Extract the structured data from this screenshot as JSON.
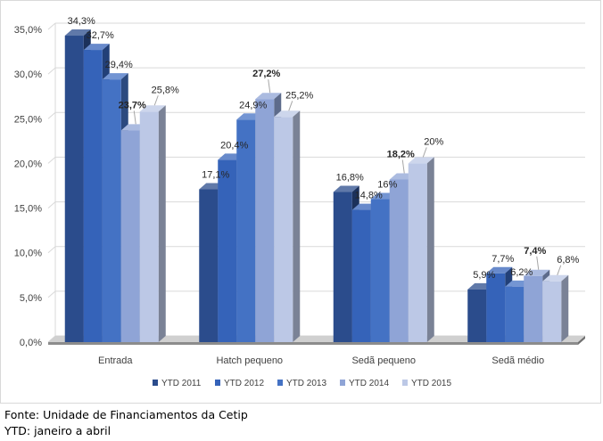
{
  "chart_data": {
    "type": "bar",
    "title": "",
    "xlabel": "",
    "ylabel": "",
    "categories": [
      "Entrada",
      "Hatch pequeno",
      "Sedã pequeno",
      "Sedã médio"
    ],
    "series": [
      {
        "name": "YTD 2011",
        "values": [
          34.3,
          17.1,
          16.8,
          5.9
        ],
        "labels": [
          "34,3%",
          "17,1%",
          "16,8%",
          "5,9%"
        ],
        "color": "#2b4c8c"
      },
      {
        "name": "YTD 2012",
        "values": [
          32.7,
          20.4,
          14.8,
          7.7
        ],
        "labels": [
          "32,7%",
          "20,4%",
          "14,8%",
          "7,7%"
        ],
        "color": "#3563b9"
      },
      {
        "name": "YTD 2013",
        "values": [
          29.4,
          24.9,
          16.0,
          6.2
        ],
        "labels": [
          "29,4%",
          "24,9%",
          "16%",
          "6,2%"
        ],
        "color": "#4472c4"
      },
      {
        "name": "YTD 2014",
        "values": [
          23.7,
          27.2,
          18.2,
          7.4
        ],
        "labels": [
          "23,7%",
          "27,2%",
          "18,2%",
          "7,4%"
        ],
        "color": "#8fa4d6"
      },
      {
        "name": "YTD 2015",
        "values": [
          25.8,
          25.2,
          20.0,
          6.8
        ],
        "labels": [
          "25,8%",
          "25,2%",
          "20%",
          "6,8%"
        ],
        "color": "#bcc8e6"
      }
    ],
    "bold_labels": [
      "23,7%",
      "27,2%",
      "18,2%",
      "7,4%"
    ],
    "ylim": [
      0,
      35
    ],
    "yticks": [
      "0,0%",
      "5,0%",
      "10,0%",
      "15,0%",
      "20,0%",
      "25,0%",
      "30,0%",
      "35,0%"
    ],
    "grid": true,
    "legend_position": "bottom"
  },
  "footnotes": {
    "source": "Fonte: Unidade de Financiamentos da Cetip",
    "period": "YTD: janeiro a abril"
  }
}
